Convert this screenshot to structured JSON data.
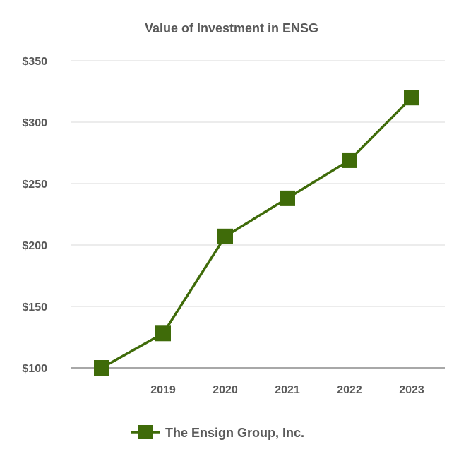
{
  "chart_data": {
    "type": "line",
    "title": "Value of Investment in ENSG",
    "xlabel": "",
    "ylabel": "",
    "x": [
      "",
      "2019",
      "2020",
      "2021",
      "2022",
      "2023"
    ],
    "y_tick_labels": [
      "$100",
      "$150",
      "$200",
      "$250",
      "$300",
      "$350"
    ],
    "ylim": [
      100,
      350
    ],
    "yticks": [
      100,
      150,
      200,
      250,
      300,
      350
    ],
    "grid": true,
    "legend_position": "bottom",
    "series": [
      {
        "name": "The Ensign Group, Inc.",
        "values": [
          100,
          128,
          207,
          238,
          269,
          320
        ],
        "color": "#3f6b09",
        "marker": "square"
      }
    ]
  }
}
